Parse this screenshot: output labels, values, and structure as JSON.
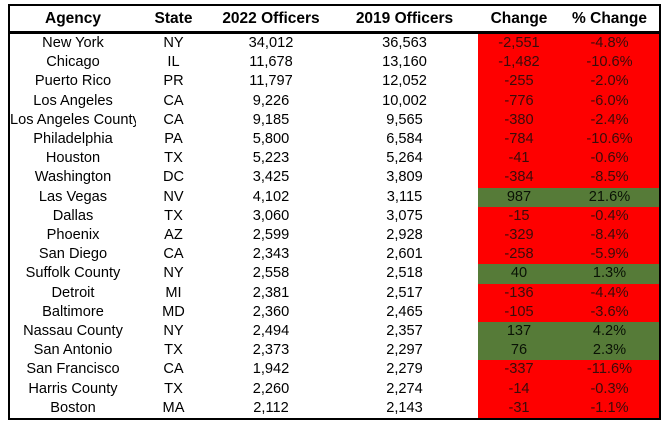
{
  "colors": {
    "negative_bg": "#FE0000",
    "negative_text": "#3A0C0A",
    "positive_bg": "#567B38",
    "positive_text": "#0A1205",
    "border": "#000000",
    "header_bg": "#FFFFFF",
    "header_text": "#000000"
  },
  "chart_data": {
    "type": "table",
    "title": "",
    "columns": [
      "Agency",
      "State",
      "2022 Officers",
      "2019 Officers",
      "Change",
      "% Change"
    ],
    "rows": [
      {
        "agency": "New York",
        "state": "NY",
        "officers_2022": "34,012",
        "officers_2019": "36,563",
        "change": "-2,551",
        "pct_change": "-4.8%",
        "direction": "negative"
      },
      {
        "agency": "Chicago",
        "state": "IL",
        "officers_2022": "11,678",
        "officers_2019": "13,160",
        "change": "-1,482",
        "pct_change": "-10.6%",
        "direction": "negative"
      },
      {
        "agency": "Puerto Rico",
        "state": "PR",
        "officers_2022": "11,797",
        "officers_2019": "12,052",
        "change": "-255",
        "pct_change": "-2.0%",
        "direction": "negative"
      },
      {
        "agency": "Los Angeles",
        "state": "CA",
        "officers_2022": "9,226",
        "officers_2019": "10,002",
        "change": "-776",
        "pct_change": "-6.0%",
        "direction": "negative"
      },
      {
        "agency": "Los Angeles County",
        "state": "CA",
        "officers_2022": "9,185",
        "officers_2019": "9,565",
        "change": "-380",
        "pct_change": "-2.4%",
        "direction": "negative"
      },
      {
        "agency": "Philadelphia",
        "state": "PA",
        "officers_2022": "5,800",
        "officers_2019": "6,584",
        "change": "-784",
        "pct_change": "-10.6%",
        "direction": "negative"
      },
      {
        "agency": "Houston",
        "state": "TX",
        "officers_2022": "5,223",
        "officers_2019": "5,264",
        "change": "-41",
        "pct_change": "-0.6%",
        "direction": "negative"
      },
      {
        "agency": "Washington",
        "state": "DC",
        "officers_2022": "3,425",
        "officers_2019": "3,809",
        "change": "-384",
        "pct_change": "-8.5%",
        "direction": "negative"
      },
      {
        "agency": "Las Vegas",
        "state": "NV",
        "officers_2022": "4,102",
        "officers_2019": "3,115",
        "change": "987",
        "pct_change": "21.6%",
        "direction": "positive"
      },
      {
        "agency": "Dallas",
        "state": "TX",
        "officers_2022": "3,060",
        "officers_2019": "3,075",
        "change": "-15",
        "pct_change": "-0.4%",
        "direction": "negative"
      },
      {
        "agency": "Phoenix",
        "state": "AZ",
        "officers_2022": "2,599",
        "officers_2019": "2,928",
        "change": "-329",
        "pct_change": "-8.4%",
        "direction": "negative"
      },
      {
        "agency": "San Diego",
        "state": "CA",
        "officers_2022": "2,343",
        "officers_2019": "2,601",
        "change": "-258",
        "pct_change": "-5.9%",
        "direction": "negative"
      },
      {
        "agency": "Suffolk County",
        "state": "NY",
        "officers_2022": "2,558",
        "officers_2019": "2,518",
        "change": "40",
        "pct_change": "1.3%",
        "direction": "positive"
      },
      {
        "agency": "Detroit",
        "state": "MI",
        "officers_2022": "2,381",
        "officers_2019": "2,517",
        "change": "-136",
        "pct_change": "-4.4%",
        "direction": "negative"
      },
      {
        "agency": "Baltimore",
        "state": "MD",
        "officers_2022": "2,360",
        "officers_2019": "2,465",
        "change": "-105",
        "pct_change": "-3.6%",
        "direction": "negative"
      },
      {
        "agency": "Nassau County",
        "state": "NY",
        "officers_2022": "2,494",
        "officers_2019": "2,357",
        "change": "137",
        "pct_change": "4.2%",
        "direction": "positive"
      },
      {
        "agency": "San Antonio",
        "state": "TX",
        "officers_2022": "2,373",
        "officers_2019": "2,297",
        "change": "76",
        "pct_change": "2.3%",
        "direction": "positive"
      },
      {
        "agency": "San Francisco",
        "state": "CA",
        "officers_2022": "1,942",
        "officers_2019": "2,279",
        "change": "-337",
        "pct_change": "-11.6%",
        "direction": "negative"
      },
      {
        "agency": "Harris County",
        "state": "TX",
        "officers_2022": "2,260",
        "officers_2019": "2,274",
        "change": "-14",
        "pct_change": "-0.3%",
        "direction": "negative"
      },
      {
        "agency": "Boston",
        "state": "MA",
        "officers_2022": "2,112",
        "officers_2019": "2,143",
        "change": "-31",
        "pct_change": "-1.1%",
        "direction": "negative"
      }
    ]
  }
}
